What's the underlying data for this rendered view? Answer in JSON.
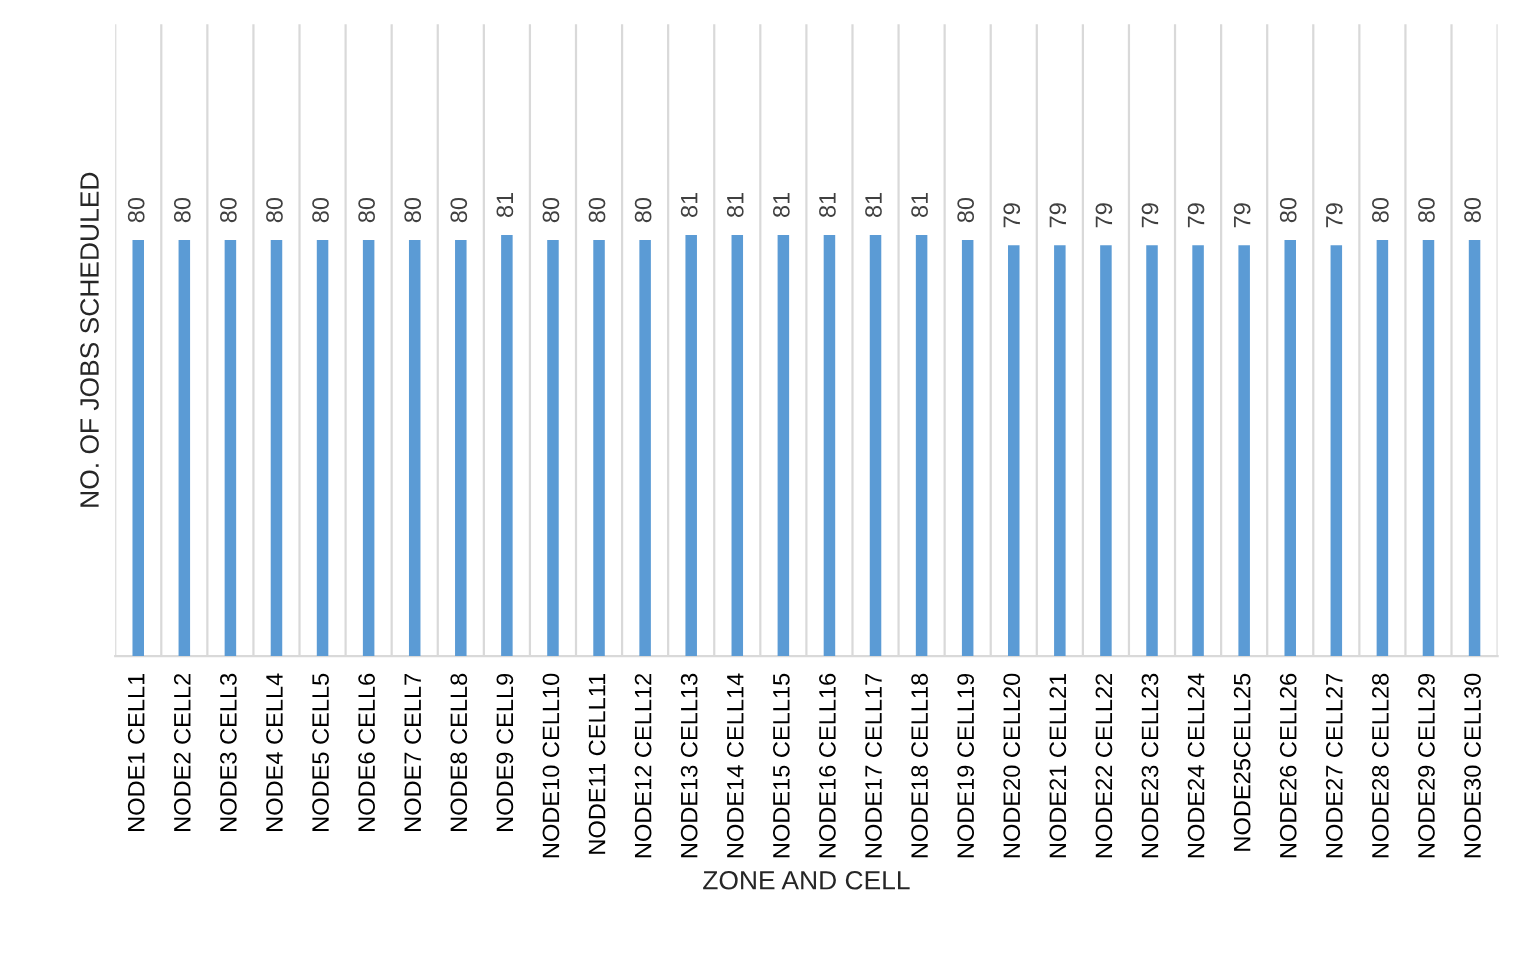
{
  "chart_data": {
    "type": "bar",
    "xlabel": "ZONE AND CELL",
    "ylabel": "NO. OF JOBS SCHEDULED",
    "categories": [
      "NODE1 CELL1",
      "NODE2 CELL2",
      "NODE3 CELL3",
      "NODE4 CELL4",
      "NODE5 CELL5",
      "NODE6 CELL6",
      "NODE7 CELL7",
      "NODE8 CELL8",
      "NODE9 CELL9",
      "NODE10 CELL10",
      "NODE11 CELL11",
      "NODE12 CELL12",
      "NODE13 CELL13",
      "NODE14 CELL14",
      "NODE15 CELL15",
      "NODE16 CELL16",
      "NODE17 CELL17",
      "NODE18 CELL18",
      "NODE19 CELL19",
      "NODE20 CELL20",
      "NODE21 CELL21",
      "NODE22 CELL22",
      "NODE23 CELL23",
      "NODE24 CELL24",
      "NODE25CELL25",
      "NODE26 CELL26",
      "NODE27 CELL27",
      "NODE28 CELL28",
      "NODE29 CELL29",
      "NODE30 CELL30"
    ],
    "values": [
      80,
      80,
      80,
      80,
      80,
      80,
      80,
      80,
      81,
      80,
      80,
      80,
      81,
      81,
      81,
      81,
      81,
      81,
      80,
      79,
      79,
      79,
      79,
      79,
      79,
      80,
      79,
      80,
      80,
      80
    ],
    "color": "#5b9bd5",
    "data_labels": true,
    "grid": "x",
    "tick_labels": "x",
    "legend": false
  }
}
